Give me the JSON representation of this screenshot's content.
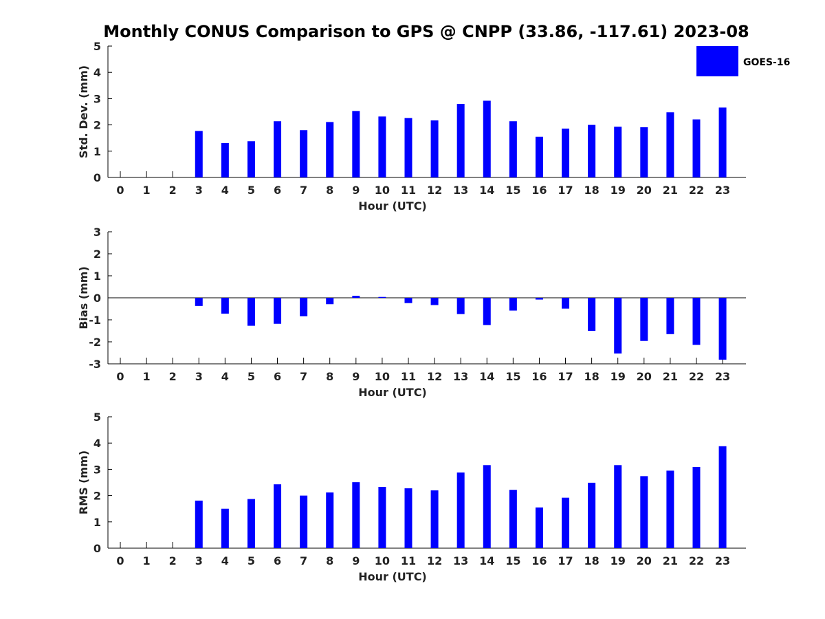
{
  "title": "Monthly CONUS Comparison to GPS @ CNPP (33.86, -117.61) 2023-08",
  "legend": {
    "label": "GOES-16",
    "color": "#0000ff"
  },
  "chart_data": [
    {
      "type": "bar",
      "ylabel": "Std. Dev. (mm)",
      "xlabel": "Hour (UTC)",
      "ylim": [
        0,
        5
      ],
      "yticks": [
        0,
        1,
        2,
        3,
        4,
        5
      ],
      "categories": [
        "0",
        "1",
        "2",
        "3",
        "4",
        "5",
        "6",
        "7",
        "8",
        "9",
        "10",
        "11",
        "12",
        "13",
        "14",
        "15",
        "16",
        "17",
        "18",
        "19",
        "20",
        "21",
        "22",
        "23"
      ],
      "series": [
        {
          "name": "GOES-16",
          "color": "#0000ff",
          "values": [
            null,
            null,
            null,
            1.77,
            1.31,
            1.38,
            2.14,
            1.8,
            2.11,
            2.53,
            2.32,
            2.26,
            2.17,
            2.8,
            2.92,
            2.14,
            1.55,
            1.86,
            2.0,
            1.93,
            1.91,
            2.48,
            2.21,
            2.66
          ]
        }
      ],
      "legend_position": "top-right"
    },
    {
      "type": "bar",
      "ylabel": "Bias (mm)",
      "xlabel": "Hour (UTC)",
      "ylim": [
        -3,
        3
      ],
      "yticks": [
        -3,
        -2,
        -1,
        0,
        1,
        2,
        3
      ],
      "categories": [
        "0",
        "1",
        "2",
        "3",
        "4",
        "5",
        "6",
        "7",
        "8",
        "9",
        "10",
        "11",
        "12",
        "13",
        "14",
        "15",
        "16",
        "17",
        "18",
        "19",
        "20",
        "21",
        "22",
        "23"
      ],
      "series": [
        {
          "name": "GOES-16",
          "color": "#0000ff",
          "values": [
            null,
            null,
            null,
            -0.37,
            -0.72,
            -1.27,
            -1.18,
            -0.84,
            -0.29,
            0.09,
            0.04,
            -0.24,
            -0.33,
            -0.74,
            -1.24,
            -0.58,
            -0.08,
            -0.49,
            -1.5,
            -2.53,
            -1.96,
            -1.65,
            -2.14,
            -2.81
          ]
        }
      ]
    },
    {
      "type": "bar",
      "ylabel": "RMS (mm)",
      "xlabel": "Hour (UTC)",
      "ylim": [
        0,
        5
      ],
      "yticks": [
        0,
        1,
        2,
        3,
        4,
        5
      ],
      "categories": [
        "0",
        "1",
        "2",
        "3",
        "4",
        "5",
        "6",
        "7",
        "8",
        "9",
        "10",
        "11",
        "12",
        "13",
        "14",
        "15",
        "16",
        "17",
        "18",
        "19",
        "20",
        "21",
        "22",
        "23"
      ],
      "series": [
        {
          "name": "GOES-16",
          "color": "#0000ff",
          "values": [
            null,
            null,
            null,
            1.81,
            1.5,
            1.87,
            2.43,
            2.0,
            2.12,
            2.51,
            2.33,
            2.28,
            2.2,
            2.88,
            3.16,
            2.22,
            1.55,
            1.92,
            2.49,
            3.16,
            2.74,
            2.95,
            3.09,
            3.88
          ]
        }
      ]
    }
  ]
}
